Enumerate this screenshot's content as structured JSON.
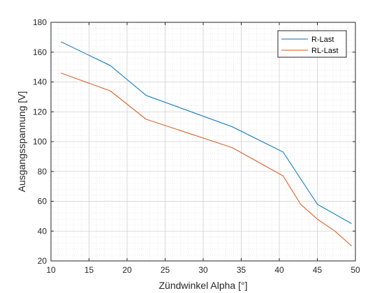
{
  "chart_data": {
    "type": "line",
    "xlabel": "Zündwinkel Alpha [°]",
    "ylabel": "Ausgangsspannung [V]",
    "xlim": [
      10,
      50
    ],
    "ylim": [
      20,
      180
    ],
    "x_ticks": [
      "10",
      "15",
      "20",
      "25",
      "30",
      "35",
      "40",
      "45",
      "50"
    ],
    "y_ticks": [
      "20",
      "40",
      "60",
      "80",
      "100",
      "120",
      "140",
      "160",
      "180"
    ],
    "grid": "on (with minor grid)",
    "legend_position": "top-right",
    "series": [
      {
        "name": "R-Last",
        "color": "#0072BD",
        "x": [
          11.3,
          17.8,
          22.5,
          33.8,
          40.5,
          45.0,
          49.5
        ],
        "y": [
          167,
          151,
          131,
          110,
          93,
          58,
          45
        ]
      },
      {
        "name": "RL-Last",
        "color": "#D95319",
        "x": [
          11.3,
          17.8,
          22.5,
          33.8,
          40.5,
          42.8,
          45.0,
          47.3,
          49.5
        ],
        "y": [
          146,
          134,
          115,
          96,
          77,
          58,
          48,
          40,
          30
        ]
      }
    ]
  }
}
